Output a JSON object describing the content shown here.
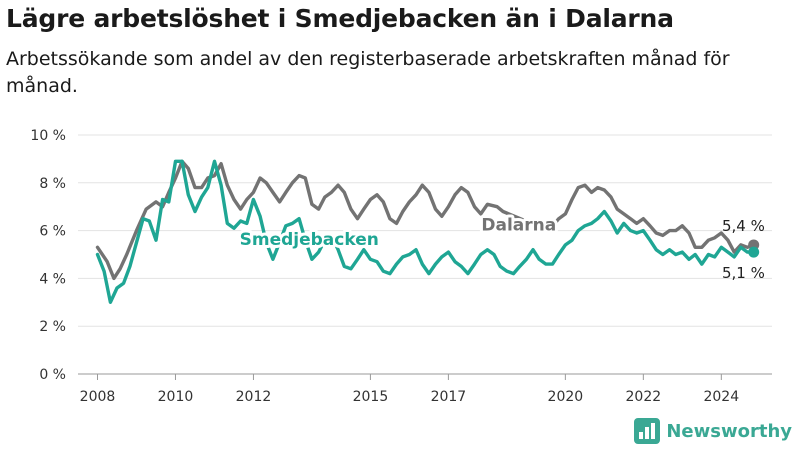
{
  "title": "Lägre arbetslöshet i Smedjebacken än i Dalarna",
  "subtitle": "Arbetssökande som andel av den registerbaserade arbetskraften månad för månad.",
  "brand": {
    "name": "Newsworthy",
    "logo_icon": "bar-chart-logo-icon",
    "color": "#3aa894"
  },
  "chart_data": {
    "type": "line",
    "title": "Lägre arbetslöshet i Smedjebacken än i Dalarna",
    "xlabel": "",
    "ylabel": "",
    "ylim": [
      0,
      10
    ],
    "xlim": [
      2007.5,
      2025.3
    ],
    "grid": true,
    "y_ticks": [
      0,
      2,
      4,
      6,
      8,
      10
    ],
    "y_tick_labels": [
      "0 %",
      "2 %",
      "4 %",
      "6 %",
      "8 %",
      "10 %"
    ],
    "x_ticks": [
      2008,
      2010,
      2012,
      2015,
      2017,
      2020,
      2022,
      2024
    ],
    "x_tick_labels": [
      "2008",
      "2010",
      "2012",
      "2015",
      "2017",
      "2020",
      "2022",
      "2024"
    ],
    "series": [
      {
        "name": "Dalarna",
        "color": "#737373",
        "end_label": "5,4 %",
        "points": [
          [
            2008.0,
            5.3
          ],
          [
            2008.25,
            4.7
          ],
          [
            2008.42,
            4.0
          ],
          [
            2008.58,
            4.4
          ],
          [
            2008.75,
            5.0
          ],
          [
            2009.0,
            6.0
          ],
          [
            2009.25,
            6.9
          ],
          [
            2009.5,
            7.2
          ],
          [
            2009.67,
            7.0
          ],
          [
            2009.83,
            7.6
          ],
          [
            2010.0,
            8.2
          ],
          [
            2010.17,
            8.9
          ],
          [
            2010.33,
            8.6
          ],
          [
            2010.5,
            7.8
          ],
          [
            2010.67,
            7.8
          ],
          [
            2010.83,
            8.2
          ],
          [
            2011.0,
            8.3
          ],
          [
            2011.17,
            8.8
          ],
          [
            2011.33,
            7.9
          ],
          [
            2011.5,
            7.3
          ],
          [
            2011.67,
            6.9
          ],
          [
            2011.83,
            7.3
          ],
          [
            2012.0,
            7.6
          ],
          [
            2012.17,
            8.2
          ],
          [
            2012.33,
            8.0
          ],
          [
            2012.5,
            7.6
          ],
          [
            2012.67,
            7.2
          ],
          [
            2012.83,
            7.6
          ],
          [
            2013.0,
            8.0
          ],
          [
            2013.17,
            8.3
          ],
          [
            2013.33,
            8.2
          ],
          [
            2013.5,
            7.1
          ],
          [
            2013.67,
            6.9
          ],
          [
            2013.83,
            7.4
          ],
          [
            2014.0,
            7.6
          ],
          [
            2014.17,
            7.9
          ],
          [
            2014.33,
            7.6
          ],
          [
            2014.5,
            6.9
          ],
          [
            2014.67,
            6.5
          ],
          [
            2014.83,
            6.9
          ],
          [
            2015.0,
            7.3
          ],
          [
            2015.17,
            7.5
          ],
          [
            2015.33,
            7.2
          ],
          [
            2015.5,
            6.5
          ],
          [
            2015.67,
            6.3
          ],
          [
            2015.83,
            6.8
          ],
          [
            2016.0,
            7.2
          ],
          [
            2016.17,
            7.5
          ],
          [
            2016.33,
            7.9
          ],
          [
            2016.5,
            7.6
          ],
          [
            2016.67,
            6.9
          ],
          [
            2016.83,
            6.6
          ],
          [
            2017.0,
            7.0
          ],
          [
            2017.17,
            7.5
          ],
          [
            2017.33,
            7.8
          ],
          [
            2017.5,
            7.6
          ],
          [
            2017.67,
            7.0
          ],
          [
            2017.83,
            6.7
          ],
          [
            2018.0,
            7.1
          ],
          [
            2018.25,
            7.0
          ],
          [
            2018.4,
            6.8
          ],
          [
            2019.58,
            6.0
          ],
          [
            2019.83,
            6.5
          ],
          [
            2020.0,
            6.7
          ],
          [
            2020.17,
            7.3
          ],
          [
            2020.33,
            7.8
          ],
          [
            2020.5,
            7.9
          ],
          [
            2020.67,
            7.6
          ],
          [
            2020.83,
            7.8
          ],
          [
            2021.0,
            7.7
          ],
          [
            2021.17,
            7.4
          ],
          [
            2021.33,
            6.9
          ],
          [
            2021.5,
            6.7
          ],
          [
            2021.67,
            6.5
          ],
          [
            2021.83,
            6.3
          ],
          [
            2022.0,
            6.5
          ],
          [
            2022.17,
            6.2
          ],
          [
            2022.33,
            5.9
          ],
          [
            2022.5,
            5.8
          ],
          [
            2022.67,
            6.0
          ],
          [
            2022.83,
            6.0
          ],
          [
            2023.0,
            6.2
          ],
          [
            2023.17,
            5.9
          ],
          [
            2023.33,
            5.3
          ],
          [
            2023.5,
            5.3
          ],
          [
            2023.67,
            5.6
          ],
          [
            2023.83,
            5.7
          ],
          [
            2024.0,
            5.9
          ],
          [
            2024.17,
            5.6
          ],
          [
            2024.33,
            5.1
          ],
          [
            2024.5,
            5.4
          ],
          [
            2024.67,
            5.3
          ],
          [
            2024.83,
            5.4
          ]
        ]
      },
      {
        "name": "Smedjebacken",
        "color": "#1fa694",
        "end_label": "5,1 %",
        "points": [
          [
            2008.0,
            5.0
          ],
          [
            2008.17,
            4.3
          ],
          [
            2008.33,
            3.0
          ],
          [
            2008.5,
            3.6
          ],
          [
            2008.67,
            3.8
          ],
          [
            2008.83,
            4.5
          ],
          [
            2009.0,
            5.5
          ],
          [
            2009.17,
            6.5
          ],
          [
            2009.33,
            6.4
          ],
          [
            2009.5,
            5.6
          ],
          [
            2009.67,
            7.3
          ],
          [
            2009.83,
            7.2
          ],
          [
            2010.0,
            8.9
          ],
          [
            2010.17,
            8.9
          ],
          [
            2010.33,
            7.5
          ],
          [
            2010.5,
            6.8
          ],
          [
            2010.67,
            7.4
          ],
          [
            2010.83,
            7.8
          ],
          [
            2011.0,
            8.9
          ],
          [
            2011.17,
            7.9
          ],
          [
            2011.33,
            6.3
          ],
          [
            2011.5,
            6.1
          ],
          [
            2011.67,
            6.4
          ],
          [
            2011.83,
            6.3
          ],
          [
            2012.0,
            7.3
          ],
          [
            2012.17,
            6.6
          ],
          [
            2012.33,
            5.5
          ],
          [
            2012.5,
            4.8
          ],
          [
            2012.67,
            5.5
          ],
          [
            2012.83,
            6.2
          ],
          [
            2013.0,
            6.3
          ],
          [
            2013.17,
            6.5
          ],
          [
            2013.33,
            5.6
          ],
          [
            2013.5,
            4.8
          ],
          [
            2013.67,
            5.1
          ],
          [
            2013.83,
            5.6
          ],
          [
            2014.0,
            5.8
          ],
          [
            2014.17,
            5.2
          ],
          [
            2014.33,
            4.5
          ],
          [
            2014.5,
            4.4
          ],
          [
            2014.67,
            4.8
          ],
          [
            2014.83,
            5.2
          ],
          [
            2015.0,
            4.8
          ],
          [
            2015.17,
            4.7
          ],
          [
            2015.33,
            4.3
          ],
          [
            2015.5,
            4.2
          ],
          [
            2015.67,
            4.6
          ],
          [
            2015.83,
            4.9
          ],
          [
            2016.0,
            5.0
          ],
          [
            2016.17,
            5.2
          ],
          [
            2016.33,
            4.6
          ],
          [
            2016.5,
            4.2
          ],
          [
            2016.67,
            4.6
          ],
          [
            2016.83,
            4.9
          ],
          [
            2017.0,
            5.1
          ],
          [
            2017.17,
            4.7
          ],
          [
            2017.33,
            4.5
          ],
          [
            2017.5,
            4.2
          ],
          [
            2017.67,
            4.6
          ],
          [
            2017.83,
            5.0
          ],
          [
            2018.0,
            5.2
          ],
          [
            2018.17,
            5.0
          ],
          [
            2018.33,
            4.5
          ],
          [
            2018.5,
            4.3
          ],
          [
            2018.67,
            4.2
          ],
          [
            2018.83,
            4.5
          ],
          [
            2019.0,
            4.8
          ],
          [
            2019.17,
            5.2
          ],
          [
            2019.33,
            4.8
          ],
          [
            2019.5,
            4.6
          ],
          [
            2019.67,
            4.6
          ],
          [
            2019.83,
            5.0
          ],
          [
            2020.0,
            5.4
          ],
          [
            2020.17,
            5.6
          ],
          [
            2020.33,
            6.0
          ],
          [
            2020.5,
            6.2
          ],
          [
            2020.67,
            6.3
          ],
          [
            2020.83,
            6.5
          ],
          [
            2021.0,
            6.8
          ],
          [
            2021.17,
            6.4
          ],
          [
            2021.33,
            5.9
          ],
          [
            2021.5,
            6.3
          ],
          [
            2021.67,
            6.0
          ],
          [
            2021.83,
            5.9
          ],
          [
            2022.0,
            6.0
          ],
          [
            2022.17,
            5.6
          ],
          [
            2022.33,
            5.2
          ],
          [
            2022.5,
            5.0
          ],
          [
            2022.67,
            5.2
          ],
          [
            2022.83,
            5.0
          ],
          [
            2023.0,
            5.1
          ],
          [
            2023.17,
            4.8
          ],
          [
            2023.33,
            5.0
          ],
          [
            2023.5,
            4.6
          ],
          [
            2023.67,
            5.0
          ],
          [
            2023.83,
            4.9
          ],
          [
            2024.0,
            5.3
          ],
          [
            2024.17,
            5.1
          ],
          [
            2024.33,
            4.9
          ],
          [
            2024.5,
            5.3
          ],
          [
            2024.67,
            5.1
          ],
          [
            2024.83,
            5.1
          ]
        ]
      }
    ]
  }
}
